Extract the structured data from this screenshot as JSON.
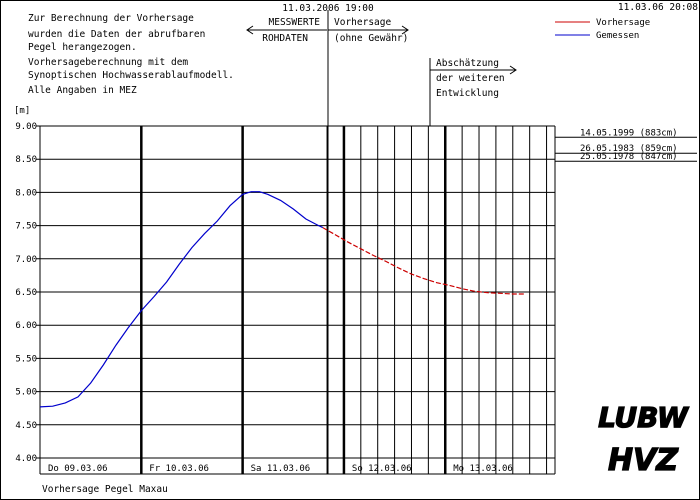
{
  "header": {
    "timestamp": "11.03.06 20:08",
    "cut_timestamp": "11.03.2006 19:00"
  },
  "notes": [
    "Zur Berechnung der Vorhersage",
    "wurden die Daten der abrufbaren",
    "Pegel herangezogen.",
    "Vorhersageberechnung mit dem",
    "Synoptischen Hochwasserablaufmodell.",
    "Alle Angaben in MEZ"
  ],
  "arrows": {
    "messwerte": "MESSWERTE",
    "rohdaten": "ROHDATEN",
    "vorhersage": "Vorhersage",
    "ohne_gewaehr": "(ohne Gewähr)",
    "abschaetzung": "Abschätzung",
    "der_weiteren": "der weiteren",
    "entwicklung": "Entwicklung"
  },
  "footer": {
    "caption": "Vorhersage Pegel Maxau"
  },
  "logos": {
    "top": "LUBW",
    "bottom": "HVZ"
  },
  "chart_data": {
    "type": "line",
    "ylabel": "[m]",
    "ylim": [
      4.0,
      9.0
    ],
    "yticks": [
      "9.00",
      "8.50",
      "8.00",
      "7.50",
      "7.00",
      "6.50",
      "6.00",
      "5.50",
      "5.00",
      "4.50",
      "4.00"
    ],
    "x_range_days": [
      "09.03.06",
      "14.03.06 02:00"
    ],
    "day_labels": [
      "Do 09.03.06",
      "Fr 10.03.06",
      "Sa 11.03.06",
      "So 12.03.06",
      "Mo 13.03.06"
    ],
    "legend": {
      "position": "top-right"
    },
    "series": [
      {
        "name": "Gemessen",
        "color": "#0000cc",
        "points": [
          [
            "09.03.06 00:00",
            4.77
          ],
          [
            "09.03.06 03:00",
            4.78
          ],
          [
            "09.03.06 06:00",
            4.83
          ],
          [
            "09.03.06 09:00",
            4.92
          ],
          [
            "09.03.06 12:00",
            5.13
          ],
          [
            "09.03.06 15:00",
            5.4
          ],
          [
            "09.03.06 18:00",
            5.7
          ],
          [
            "09.03.06 21:00",
            5.97
          ],
          [
            "10.03.06 00:00",
            6.22
          ],
          [
            "10.03.06 03:00",
            6.43
          ],
          [
            "10.03.06 06:00",
            6.65
          ],
          [
            "10.03.06 09:00",
            6.92
          ],
          [
            "10.03.06 12:00",
            7.17
          ],
          [
            "10.03.06 15:00",
            7.38
          ],
          [
            "10.03.06 18:00",
            7.57
          ],
          [
            "10.03.06 21:00",
            7.8
          ],
          [
            "11.03.06 00:00",
            7.97
          ],
          [
            "11.03.06 02:00",
            8.01
          ],
          [
            "11.03.06 04:00",
            8.01
          ],
          [
            "11.03.06 06:00",
            7.97
          ],
          [
            "11.03.06 09:00",
            7.88
          ],
          [
            "11.03.06 12:00",
            7.75
          ],
          [
            "11.03.06 15:00",
            7.6
          ],
          [
            "11.03.06 18:00",
            7.5
          ],
          [
            "11.03.06 19:00",
            7.47
          ]
        ]
      },
      {
        "name": "Vorhersage",
        "color": "#cc0000",
        "points": [
          [
            "11.03.06 19:00",
            7.47
          ],
          [
            "11.03.06 22:00",
            7.36
          ],
          [
            "12.03.06 01:00",
            7.25
          ],
          [
            "12.03.06 04:00",
            7.15
          ],
          [
            "12.03.06 07:00",
            7.05
          ],
          [
            "12.03.06 10:00",
            6.96
          ],
          [
            "12.03.06 13:00",
            6.86
          ],
          [
            "12.03.06 16:00",
            6.77
          ],
          [
            "12.03.06 19:00",
            6.7
          ],
          [
            "12.03.06 22:00",
            6.64
          ],
          [
            "13.03.06 01:00",
            6.6
          ],
          [
            "13.03.06 04:00",
            6.55
          ],
          [
            "13.03.06 07:00",
            6.51
          ],
          [
            "13.03.06 10:00",
            6.49
          ],
          [
            "13.03.06 13:00",
            6.48
          ],
          [
            "13.03.06 16:00",
            6.47
          ],
          [
            "13.03.06 19:00",
            6.47
          ]
        ]
      }
    ],
    "reference_levels": [
      {
        "label": "14.05.1999 (883cm)",
        "value": 8.83
      },
      {
        "label": "26.05.1983 (859cm)",
        "value": 8.59
      },
      {
        "label": "25.05.1978 (847cm)",
        "value": 8.47
      }
    ]
  }
}
